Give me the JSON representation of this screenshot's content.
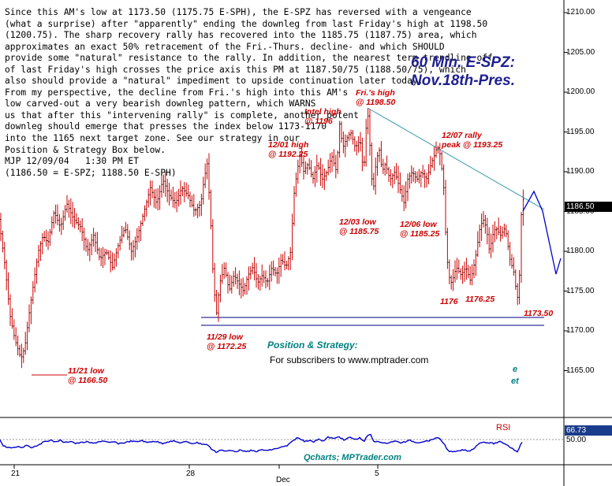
{
  "commentary_lines": [
    "Since this AM's low at 1173.50 (1175.75 E-SPH), the E-SPZ has reversed with a vengeance",
    "(what a surprise) after \"apparently\" ending the downleg from last Friday's high at 1198.50",
    "(1200.75). The sharp recovery rally has recovered into the 1185.75 (1187.75) area, which",
    "approximates an exact 50% retracement of the Fri.-Thurs. decline- and which SHOULD",
    "provide some \"natural\" resistance to the rally. In addition, the nearest term trendline off",
    "of last Friday's high crosses the price axis this PM at 1187.50/75 (1188.50/75), which",
    "also should provide a \"natural\" impediment to upside continuation later today.",
    "From my perspective, the decline from Fri.'s high into this AM's",
    "low carved-out a very bearish downleg pattern, which WARNS",
    "us that after this \"intervening rally\" is complete, another potent",
    "downleg should emerge that presses the index below 1173-1170",
    "into the 1165 next target zone. See our strategy in our",
    "Position & Strategy Box below.",
    "MJP 12/09/04   1:30 PM ET",
    "(1186.50 = E-SPZ; 1188.50 E-SPH)"
  ],
  "title_line1": "60 Min. E-SPZ:",
  "title_line2": "Nov.18th-Pres.",
  "strategy": {
    "title": "Position & Strategy:",
    "text": "For subscribers to www.mptrader.com",
    "tail1": "e",
    "tail2": "et"
  },
  "current_price": "1186.50",
  "rsi": {
    "label": "RSI",
    "value": "66.73",
    "level": "50.00"
  },
  "credit": "Qcharts; MPTrader.com",
  "colors": {
    "bars": "#cc0000",
    "rsi_line": "#0000cc",
    "trendline": "#3399aa",
    "support": "#000080",
    "annotation": "#cc0000"
  },
  "chart_data": {
    "type": "bar",
    "title": "60 Min. E-SPZ: Nov.18th-Pres.",
    "x_ticks": [
      "21",
      "28",
      "Dec",
      "5"
    ],
    "y_ticks": [
      "1210.00",
      "1205.00",
      "1200.00",
      "1195.00",
      "1190.00",
      "1185.00",
      "1180.00",
      "1175.00",
      "1170.00",
      "1165.00"
    ],
    "ylim": [
      1162.5,
      1211.5
    ],
    "annotations": [
      {
        "label": "11/21 low",
        "value": "@ 1166.50"
      },
      {
        "label": "11/29 low",
        "value": "@ 1172.25"
      },
      {
        "label": "12/01 high",
        "value": "@ 1192.25"
      },
      {
        "label": "Intel high",
        "value": "@ 1196"
      },
      {
        "label": "Fri.'s high",
        "value": "@ 1198.50"
      },
      {
        "label": "12/03 low",
        "value": "@ 1185.75"
      },
      {
        "label": "12/06 low",
        "value": "@ 1185.25"
      },
      {
        "label": "12/07 rally",
        "value": "peak @ 1193.25"
      },
      {
        "label": "1176",
        "value": ""
      },
      {
        "label": "1176.25",
        "value": ""
      },
      {
        "label": "1173.50",
        "value": ""
      }
    ],
    "price_path": [
      [
        0,
        1184
      ],
      [
        8,
        1178
      ],
      [
        14,
        1172
      ],
      [
        20,
        1169
      ],
      [
        28,
        1166.5
      ],
      [
        33,
        1168
      ],
      [
        38,
        1172
      ],
      [
        44,
        1176
      ],
      [
        50,
        1180
      ],
      [
        56,
        1182
      ],
      [
        62,
        1181
      ],
      [
        70,
        1185
      ],
      [
        78,
        1183
      ],
      [
        86,
        1186
      ],
      [
        95,
        1184
      ],
      [
        104,
        1183
      ],
      [
        112,
        1180
      ],
      [
        120,
        1182
      ],
      [
        128,
        1179
      ],
      [
        136,
        1180
      ],
      [
        144,
        1178
      ],
      [
        152,
        1181
      ],
      [
        160,
        1183
      ],
      [
        168,
        1180
      ],
      [
        176,
        1182
      ],
      [
        184,
        1185
      ],
      [
        192,
        1188
      ],
      [
        200,
        1186
      ],
      [
        208,
        1189
      ],
      [
        216,
        1187
      ],
      [
        224,
        1186
      ],
      [
        232,
        1188
      ],
      [
        240,
        1187
      ],
      [
        248,
        1185
      ],
      [
        256,
        1186
      ],
      [
        260,
        1189
      ],
      [
        264,
        1191
      ],
      [
        268,
        1185
      ],
      [
        272,
        1176
      ],
      [
        276,
        1172.25
      ],
      [
        280,
        1176
      ],
      [
        286,
        1178
      ],
      [
        292,
        1175
      ],
      [
        298,
        1177
      ],
      [
        304,
        1176
      ],
      [
        310,
        1175
      ],
      [
        316,
        1177
      ],
      [
        322,
        1178
      ],
      [
        328,
        1176
      ],
      [
        334,
        1177
      ],
      [
        340,
        1176
      ],
      [
        346,
        1178
      ],
      [
        352,
        1177
      ],
      [
        358,
        1179
      ],
      [
        364,
        1178
      ],
      [
        370,
        1180
      ],
      [
        374,
        1187
      ],
      [
        378,
        1190
      ],
      [
        382,
        1192.25
      ],
      [
        386,
        1190
      ],
      [
        392,
        1191
      ],
      [
        398,
        1189
      ],
      [
        404,
        1191
      ],
      [
        410,
        1189
      ],
      [
        416,
        1190
      ],
      [
        422,
        1192
      ],
      [
        428,
        1190
      ],
      [
        432,
        1196
      ],
      [
        436,
        1193
      ],
      [
        440,
        1194
      ],
      [
        446,
        1195
      ],
      [
        452,
        1193
      ],
      [
        458,
        1194
      ],
      [
        462,
        1190
      ],
      [
        464,
        1192
      ],
      [
        467,
        1198.5
      ],
      [
        470,
        1194
      ],
      [
        474,
        1187
      ],
      [
        478,
        1191
      ],
      [
        482,
        1193
      ],
      [
        486,
        1190
      ],
      [
        490,
        1191
      ],
      [
        496,
        1189
      ],
      [
        502,
        1190
      ],
      [
        508,
        1188
      ],
      [
        514,
        1186
      ],
      [
        518,
        1189
      ],
      [
        524,
        1190
      ],
      [
        530,
        1189
      ],
      [
        536,
        1190
      ],
      [
        542,
        1189
      ],
      [
        548,
        1191
      ],
      [
        552,
        1192
      ],
      [
        556,
        1193.25
      ],
      [
        560,
        1192
      ],
      [
        564,
        1188
      ],
      [
        567,
        1181
      ],
      [
        570,
        1177
      ],
      [
        574,
        1176
      ],
      [
        580,
        1178
      ],
      [
        586,
        1177
      ],
      [
        592,
        1178
      ],
      [
        598,
        1176.25
      ],
      [
        604,
        1179
      ],
      [
        610,
        1183
      ],
      [
        614,
        1184
      ],
      [
        618,
        1183
      ],
      [
        622,
        1180
      ],
      [
        626,
        1182
      ],
      [
        630,
        1183
      ],
      [
        636,
        1182
      ],
      [
        642,
        1183
      ],
      [
        648,
        1179
      ],
      [
        654,
        1177
      ],
      [
        657,
        1173.5
      ],
      [
        660,
        1177
      ],
      [
        663,
        1186.5
      ]
    ],
    "rsi_path": [
      [
        0,
        1
      ],
      [
        4,
        16
      ],
      [
        10,
        20
      ],
      [
        16,
        22
      ],
      [
        22,
        18
      ],
      [
        28,
        20
      ],
      [
        34,
        14
      ],
      [
        40,
        20
      ],
      [
        46,
        16
      ],
      [
        52,
        10
      ],
      [
        58,
        4
      ],
      [
        64,
        2
      ],
      [
        70,
        6
      ],
      [
        76,
        2
      ],
      [
        82,
        8
      ],
      [
        90,
        4
      ],
      [
        96,
        10
      ],
      [
        102,
        8
      ],
      [
        110,
        6
      ],
      [
        118,
        10
      ],
      [
        124,
        6
      ],
      [
        130,
        4
      ],
      [
        138,
        8
      ],
      [
        144,
        6
      ],
      [
        150,
        10
      ],
      [
        158,
        8
      ],
      [
        166,
        4
      ],
      [
        174,
        6
      ],
      [
        180,
        2
      ],
      [
        186,
        8
      ],
      [
        194,
        4
      ],
      [
        200,
        6
      ],
      [
        206,
        10
      ],
      [
        212,
        6
      ],
      [
        220,
        4
      ],
      [
        228,
        8
      ],
      [
        236,
        6
      ],
      [
        244,
        10
      ],
      [
        250,
        8
      ],
      [
        258,
        12
      ],
      [
        264,
        14
      ],
      [
        268,
        24
      ],
      [
        274,
        32
      ],
      [
        280,
        26
      ],
      [
        286,
        30
      ],
      [
        292,
        28
      ],
      [
        300,
        30
      ],
      [
        306,
        26
      ],
      [
        312,
        32
      ],
      [
        318,
        28
      ],
      [
        326,
        30
      ],
      [
        332,
        26
      ],
      [
        340,
        28
      ],
      [
        348,
        24
      ],
      [
        356,
        20
      ],
      [
        364,
        16
      ],
      [
        370,
        6
      ],
      [
        376,
        -4
      ],
      [
        380,
        -2
      ],
      [
        386,
        4
      ],
      [
        392,
        2
      ],
      [
        398,
        6
      ],
      [
        404,
        -2
      ],
      [
        410,
        4
      ],
      [
        416,
        -6
      ],
      [
        424,
        -2
      ],
      [
        430,
        -8
      ],
      [
        436,
        2
      ],
      [
        444,
        -6
      ],
      [
        450,
        0
      ],
      [
        456,
        -4
      ],
      [
        462,
        4
      ],
      [
        466,
        -10
      ],
      [
        470,
        -12
      ],
      [
        474,
        6
      ],
      [
        480,
        4
      ],
      [
        486,
        10
      ],
      [
        492,
        8
      ],
      [
        500,
        4
      ],
      [
        508,
        8
      ],
      [
        514,
        6
      ],
      [
        520,
        2
      ],
      [
        528,
        8
      ],
      [
        534,
        6
      ],
      [
        540,
        4
      ],
      [
        546,
        2
      ],
      [
        552,
        -4
      ],
      [
        558,
        -2
      ],
      [
        564,
        14
      ],
      [
        568,
        28
      ],
      [
        574,
        32
      ],
      [
        580,
        30
      ],
      [
        588,
        26
      ],
      [
        594,
        30
      ],
      [
        600,
        24
      ],
      [
        606,
        12
      ],
      [
        612,
        6
      ],
      [
        618,
        8
      ],
      [
        626,
        10
      ],
      [
        634,
        6
      ],
      [
        640,
        10
      ],
      [
        646,
        18
      ],
      [
        652,
        26
      ],
      [
        656,
        30
      ],
      [
        660,
        14
      ],
      [
        663,
        2
      ]
    ]
  }
}
